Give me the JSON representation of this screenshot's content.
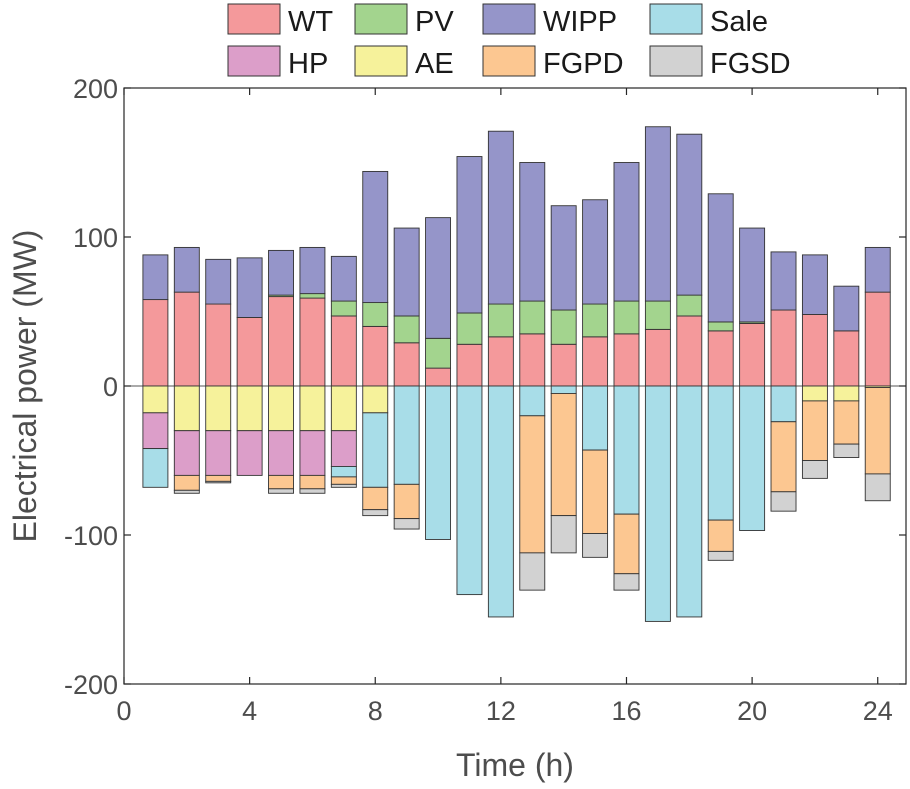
{
  "chart_data": {
    "type": "bar",
    "stacked": true,
    "xlabel": "Time (h)",
    "ylabel": "Electrical power (MW)",
    "xlim": [
      0,
      24.9
    ],
    "ylim": [
      -200,
      200
    ],
    "xticks": [
      0,
      4,
      8,
      12,
      16,
      20,
      24
    ],
    "yticks": [
      -200,
      -100,
      0,
      100,
      200
    ],
    "x": [
      1,
      2,
      3,
      4,
      5,
      6,
      7,
      8,
      9,
      10,
      11,
      12,
      13,
      14,
      15,
      16,
      17,
      18,
      19,
      20,
      21,
      22,
      23,
      24
    ],
    "series": [
      {
        "name": "WT",
        "color": "#f4999b",
        "values": [
          58,
          63,
          55,
          46,
          60,
          59,
          47,
          40,
          29,
          12,
          28,
          33,
          35,
          28,
          33,
          35,
          38,
          47,
          37,
          42,
          51,
          48,
          37,
          63
        ]
      },
      {
        "name": "PV",
        "color": "#a3d48e",
        "values": [
          0,
          0,
          0,
          0,
          1,
          3,
          10,
          16,
          18,
          20,
          21,
          22,
          22,
          23,
          22,
          22,
          19,
          14,
          6,
          1,
          0,
          0,
          0,
          0
        ]
      },
      {
        "name": "WIPP",
        "color": "#9595c9",
        "values": [
          30,
          30,
          30,
          40,
          30,
          31,
          30,
          88,
          59,
          81,
          105,
          116,
          93,
          70,
          70,
          93,
          117,
          108,
          86,
          63,
          39,
          40,
          30,
          30
        ]
      },
      {
        "name": "AE",
        "color": "#f6f29b",
        "values": [
          -18,
          -30,
          -30,
          -30,
          -30,
          -30,
          -30,
          -18,
          0,
          0,
          0,
          0,
          0,
          0,
          0,
          0,
          0,
          0,
          0,
          0,
          0,
          -10,
          -10,
          -1
        ]
      },
      {
        "name": "HP",
        "color": "#dc9ec9",
        "values": [
          -24,
          -30,
          -30,
          -30,
          -30,
          -30,
          -24,
          0,
          0,
          0,
          0,
          0,
          0,
          0,
          0,
          0,
          0,
          0,
          0,
          0,
          0,
          0,
          0,
          0
        ]
      },
      {
        "name": "Sale",
        "color": "#a8dde8",
        "values": [
          -26,
          0,
          0,
          0,
          0,
          0,
          -7,
          -50,
          -66,
          -103,
          -140,
          -155,
          -20,
          -5,
          -43,
          -86,
          -158,
          -155,
          -90,
          -97,
          -24,
          0,
          0,
          0
        ]
      },
      {
        "name": "FGPD",
        "color": "#fcc791",
        "values": [
          0,
          -10,
          -4,
          0,
          -9,
          -9,
          -5,
          -15,
          -23,
          0,
          0,
          0,
          -92,
          -82,
          -56,
          -40,
          0,
          0,
          -21,
          0,
          -47,
          -40,
          -29,
          -58
        ]
      },
      {
        "name": "FGSD",
        "color": "#d2d2d2",
        "values": [
          0,
          -2,
          -1,
          0,
          -3,
          -3,
          -2,
          -4,
          -7,
          0,
          0,
          0,
          -25,
          -25,
          -16,
          -11,
          0,
          0,
          -6,
          0,
          -13,
          -12,
          -9,
          -18
        ]
      }
    ],
    "legend": {
      "placement": "top",
      "rows": [
        [
          "WT",
          "PV",
          "WIPP",
          "Sale"
        ],
        [
          "HP",
          "AE",
          "FGPD",
          "FGSD"
        ]
      ]
    }
  }
}
